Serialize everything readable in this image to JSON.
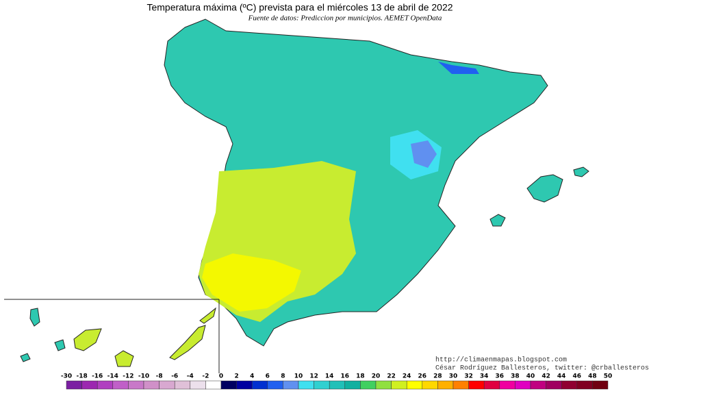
{
  "header": {
    "title": "Temperatura máxima (ºC) prevista para el miércoles 13 de abril de 2022",
    "subtitle": "Fuente de datos: Prediccion por municipios. AEMET OpenData"
  },
  "credits": [
    "http://climaenmapas.blogspot.com",
    "César Rodríguez Ballesteros, twitter: @crballesteros"
  ],
  "legend": {
    "ticks": [
      -30,
      -18,
      -16,
      -14,
      -12,
      -10,
      -8,
      -6,
      -4,
      -2,
      0,
      2,
      4,
      6,
      8,
      10,
      12,
      14,
      16,
      18,
      20,
      22,
      24,
      26,
      28,
      30,
      32,
      34,
      36,
      38,
      40,
      42,
      44,
      46,
      48,
      50
    ],
    "colors": [
      "#7b1fa2",
      "#9c27b0",
      "#b040c0",
      "#c060c8",
      "#c878c8",
      "#d090c8",
      "#d8a8d0",
      "#e0c0d8",
      "#ece0ec",
      "#ffffff",
      "#000060",
      "#0000a0",
      "#0030d0",
      "#2060f0",
      "#6090f0",
      "#40e0f0",
      "#30d0d0",
      "#20c0b8",
      "#10b0a0",
      "#40d060",
      "#90e040",
      "#d0f020",
      "#ffff00",
      "#ffd800",
      "#ffb000",
      "#ff8000",
      "#ff0000",
      "#e00040",
      "#f000a0",
      "#e000c0",
      "#c00080",
      "#a00060",
      "#900030",
      "#800020",
      "#700010"
    ]
  }
}
